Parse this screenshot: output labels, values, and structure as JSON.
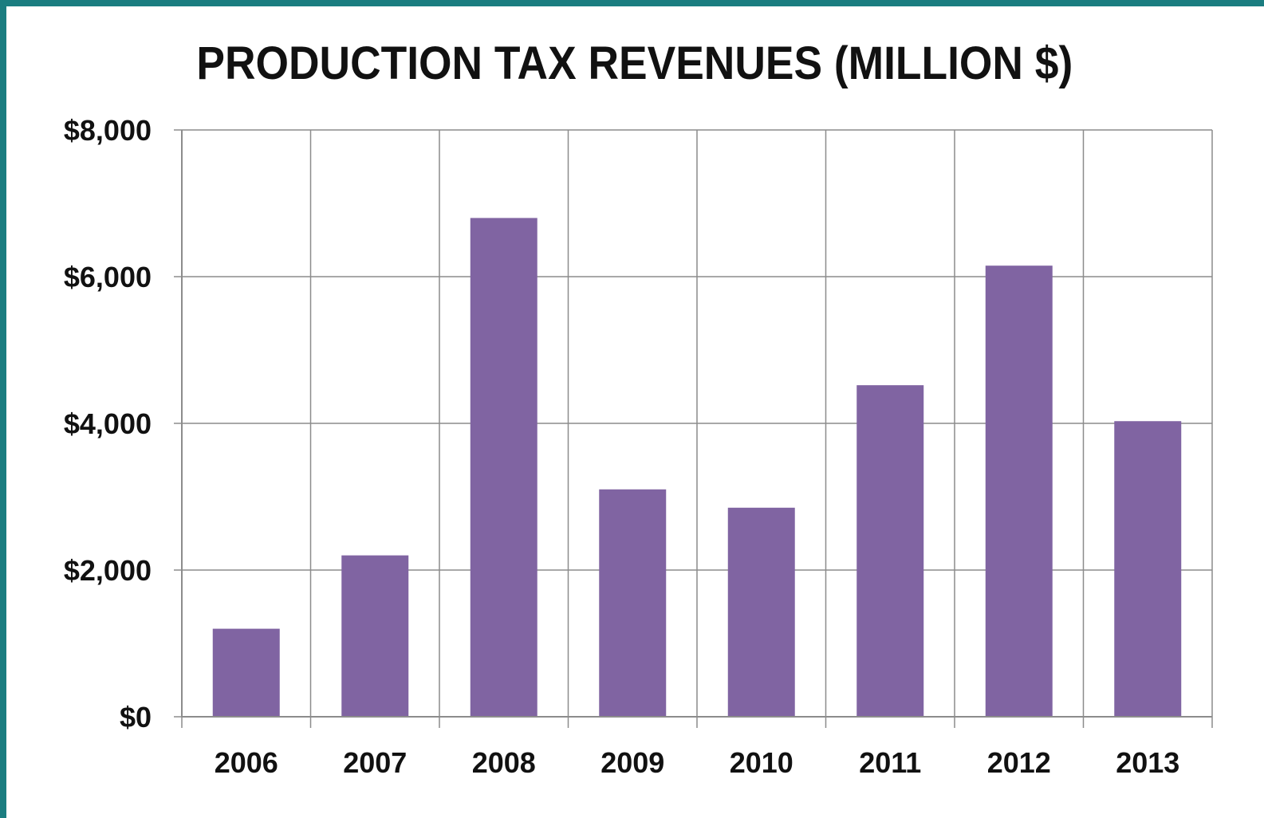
{
  "chart_data": {
    "type": "bar",
    "title": "PRODUCTION TAX REVENUES (MILLION $)",
    "xlabel": "",
    "ylabel": "",
    "categories": [
      "2006",
      "2007",
      "2008",
      "2009",
      "2010",
      "2011",
      "2012",
      "2013"
    ],
    "values": [
      1200,
      2200,
      6800,
      3100,
      2850,
      4520,
      6150,
      4030
    ],
    "ylim": [
      0,
      8000
    ],
    "yticks": [
      0,
      2000,
      4000,
      6000,
      8000
    ],
    "ytick_labels": [
      "$0",
      "$2,000",
      "$4,000",
      "$6,000",
      "$8,000"
    ],
    "grid": true,
    "legend": "none",
    "bar_color": "#8064a2"
  }
}
